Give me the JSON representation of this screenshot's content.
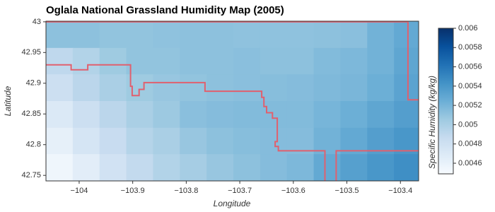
{
  "chart_data": {
    "type": "heatmap",
    "title": "Oglala National Grassland Humidity Map (2005)",
    "x_label": "Longitude",
    "y_label": "Latitude",
    "colorbar_label": "Specific Humidity (kg/kg)",
    "colormap": "Blues",
    "x": [
      -104.037,
      -103.987,
      -103.937,
      -103.887,
      -103.837,
      -103.787,
      -103.737,
      -103.687,
      -103.637,
      -103.587,
      -103.537,
      -103.487,
      -103.437,
      -103.387
    ],
    "y": [
      42.979,
      42.936,
      42.893,
      42.849,
      42.806,
      42.763
    ],
    "z": [
      [
        0.00512,
        0.00512,
        0.0051,
        0.0051,
        0.00511,
        0.00512,
        0.00512,
        0.00511,
        0.00511,
        0.00511,
        0.00512,
        0.00513,
        0.00522,
        0.00528
      ],
      [
        0.0049,
        0.00496,
        0.00505,
        0.0051,
        0.0051,
        0.00512,
        0.00512,
        0.00513,
        0.00512,
        0.00512,
        0.00516,
        0.00518,
        0.00522,
        0.0053
      ],
      [
        0.00482,
        0.00492,
        0.005,
        0.00505,
        0.00508,
        0.0051,
        0.00512,
        0.00513,
        0.00514,
        0.00515,
        0.00517,
        0.00519,
        0.00524,
        0.00532
      ],
      [
        0.0047,
        0.00482,
        0.00492,
        0.005,
        0.00506,
        0.00513,
        0.00515,
        0.00516,
        0.00516,
        0.00516,
        0.0052,
        0.00524,
        0.0053,
        0.00535
      ],
      [
        0.00462,
        0.00475,
        0.00485,
        0.00495,
        0.005,
        0.00508,
        0.00512,
        0.00514,
        0.00515,
        0.00515,
        0.00522,
        0.00528,
        0.00535,
        0.0054
      ],
      [
        0.00455,
        0.00465,
        0.00478,
        0.00488,
        0.00496,
        0.00502,
        0.00508,
        0.00512,
        0.00515,
        0.00518,
        0.00528,
        0.00534,
        0.0054,
        0.00545
      ]
    ],
    "clim": [
      0.00449,
      0.006
    ],
    "cticks": [
      0.0046,
      0.0048,
      0.005,
      0.0052,
      0.0054,
      0.0056,
      0.0058,
      0.006
    ],
    "boundary": {
      "color": "#e0606e",
      "x": [
        -104.062,
        -103.386,
        -103.386,
        -103.366,
        null,
        -104.062,
        -104.015,
        -104.015,
        -103.984,
        -103.984,
        -103.904,
        -103.904,
        -103.901,
        -103.901,
        -103.888,
        -103.888,
        -103.879,
        -103.879,
        -103.765,
        -103.765,
        -103.659,
        -103.659,
        -103.655,
        -103.655,
        -103.65,
        -103.65,
        -103.639,
        -103.639,
        -103.63,
        -103.63,
        -103.634,
        -103.634,
        -103.628,
        -103.628,
        -103.541,
        -103.541,
        null,
        -103.52,
        -103.52,
        -103.366
      ],
      "y": [
        43.0,
        43.0,
        42.873,
        42.873,
        null,
        42.93,
        42.93,
        42.922,
        42.922,
        42.93,
        42.93,
        42.895,
        42.895,
        42.88,
        42.88,
        42.89,
        42.89,
        42.901,
        42.901,
        42.887,
        42.887,
        42.877,
        42.877,
        42.862,
        42.862,
        42.852,
        42.852,
        42.843,
        42.843,
        42.805,
        42.805,
        42.797,
        42.797,
        42.79,
        42.79,
        42.741,
        null,
        42.741,
        42.79,
        42.79
      ]
    },
    "xlim": [
      -104.062,
      -103.366
    ],
    "ylim": [
      42.741,
      43.001
    ],
    "xticks": [
      {
        "value": -104,
        "label": "−104"
      },
      {
        "value": -103.9,
        "label": "−103.9"
      },
      {
        "value": -103.8,
        "label": "−103.8"
      },
      {
        "value": -103.7,
        "label": "−103.7"
      },
      {
        "value": -103.6,
        "label": "−103.6"
      },
      {
        "value": -103.5,
        "label": "−103.5"
      },
      {
        "value": -103.4,
        "label": "−103.4"
      }
    ],
    "yticks": [
      42.75,
      42.8,
      42.85,
      42.9,
      42.95,
      43
    ]
  }
}
